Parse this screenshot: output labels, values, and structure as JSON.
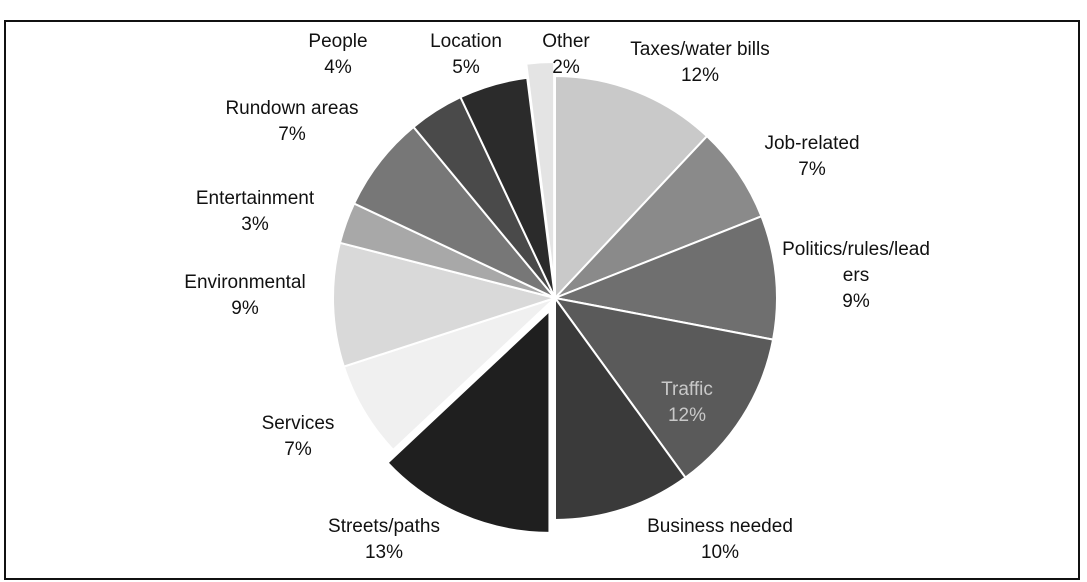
{
  "chart_data": {
    "type": "pie",
    "title": "",
    "start_angle_deg": 0,
    "direction": "clockwise",
    "slices": [
      {
        "label": "Taxes/water bills",
        "line1": "Taxes/water bills",
        "line2": "",
        "value_text": "12%",
        "value": 12,
        "color": "#c9c9c9",
        "explode": false
      },
      {
        "label": "Job-related",
        "line1": "Job-related",
        "line2": "",
        "value_text": "7%",
        "value": 7,
        "color": "#8a8a8a",
        "explode": false
      },
      {
        "label": "Politics/rules/leaders",
        "line1": "Politics/rules/lead",
        "line2": "ers",
        "value_text": "9%",
        "value": 9,
        "color": "#6f6f6f",
        "explode": false
      },
      {
        "label": "Traffic",
        "line1": "Traffic",
        "line2": "",
        "value_text": "12%",
        "value": 12,
        "color": "#5a5a5a",
        "explode": false
      },
      {
        "label": "Business needed",
        "line1": "Business needed",
        "line2": "",
        "value_text": "10%",
        "value": 10,
        "color": "#3a3a3a",
        "explode": false
      },
      {
        "label": "Streets/paths",
        "line1": "Streets/paths",
        "line2": "",
        "value_text": "13%",
        "value": 13,
        "color": "#1f1f1f",
        "explode": true
      },
      {
        "label": "Services",
        "line1": "Services",
        "line2": "",
        "value_text": "7%",
        "value": 7,
        "color": "#f0f0f0",
        "explode": false
      },
      {
        "label": "Environmental",
        "line1": "Environmental",
        "line2": "",
        "value_text": "9%",
        "value": 9,
        "color": "#d9d9d9",
        "explode": false
      },
      {
        "label": "Entertainment",
        "line1": "Entertainment",
        "line2": "",
        "value_text": "3%",
        "value": 3,
        "color": "#a8a8a8",
        "explode": false
      },
      {
        "label": "Rundown areas",
        "line1": "Rundown areas",
        "line2": "",
        "value_text": "7%",
        "value": 7,
        "color": "#777777",
        "explode": false
      },
      {
        "label": "People",
        "line1": "People",
        "line2": "",
        "value_text": "4%",
        "value": 4,
        "color": "#4a4a4a",
        "explode": false
      },
      {
        "label": "Location",
        "line1": "Location",
        "line2": "",
        "value_text": "5%",
        "value": 5,
        "color": "#2b2b2b",
        "explode": false
      },
      {
        "label": "Other",
        "line1": "Other",
        "line2": "",
        "value_text": "2%",
        "value": 2,
        "color": "#e4e4e4",
        "explode": true
      }
    ]
  }
}
